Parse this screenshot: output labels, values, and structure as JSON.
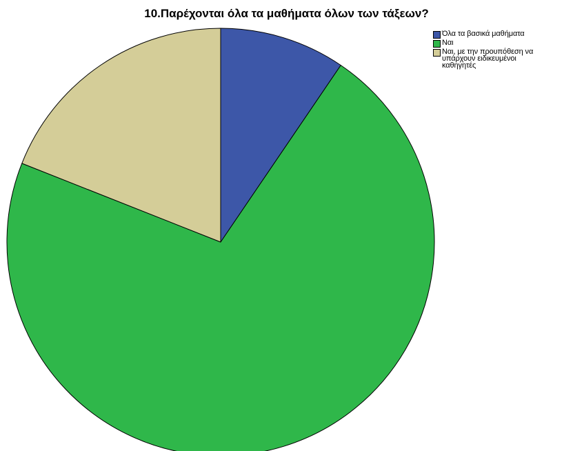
{
  "chart_data": {
    "type": "pie",
    "title": "10.Παρέχονται όλα τα μαθήματα όλων των τάξεων?",
    "legend_position": "top-right",
    "start_angle_deg": 0,
    "direction": "clockwise",
    "slices": [
      {
        "label": "Όλα τα βασικά μαθήματα",
        "value": 9.5,
        "color": "#3d57a8"
      },
      {
        "label": "Ναι",
        "value": 71.5,
        "color": "#2fb74a"
      },
      {
        "label": "Ναι, με την προυπόθεση να\nυπάρχουν ειδικευμένοι\nκαθηγητές",
        "value": 19.0,
        "color": "#d4cd98"
      }
    ]
  }
}
